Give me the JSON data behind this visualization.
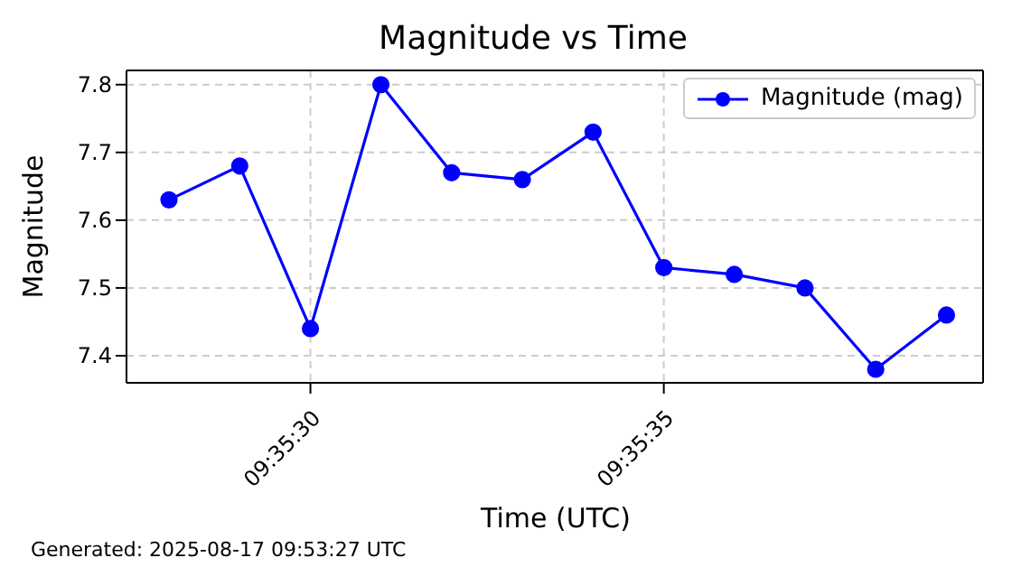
{
  "chart_data": {
    "type": "line",
    "title": "Magnitude vs Time",
    "xlabel": "Time (UTC)",
    "ylabel": "Magnitude",
    "x": [
      9.591111,
      9.591389,
      9.591667,
      9.591944,
      9.592222,
      9.5925,
      9.592778,
      9.593056,
      9.593333,
      9.593611,
      9.593889,
      9.594167
    ],
    "series": [
      {
        "name": "Magnitude (mag)",
        "color": "#0000ff",
        "values": [
          7.63,
          7.68,
          7.44,
          7.8,
          7.67,
          7.66,
          7.73,
          7.53,
          7.52,
          7.5,
          7.38,
          7.46
        ]
      }
    ],
    "xlim": [
      9.590944,
      9.594311
    ],
    "xticks": [
      {
        "value": 9.591667,
        "label": "09:35:30"
      },
      {
        "value": 9.593056,
        "label": "09:35:35"
      }
    ],
    "ylim": [
      7.36,
      7.821
    ],
    "yticks": [
      7.4,
      7.5,
      7.6,
      7.7,
      7.8
    ],
    "grid": true,
    "legend": "top right",
    "marker": "circle",
    "line_style": "solid",
    "annotations": [
      "Generated: 2025-08-17 09:53:27 UTC"
    ]
  }
}
